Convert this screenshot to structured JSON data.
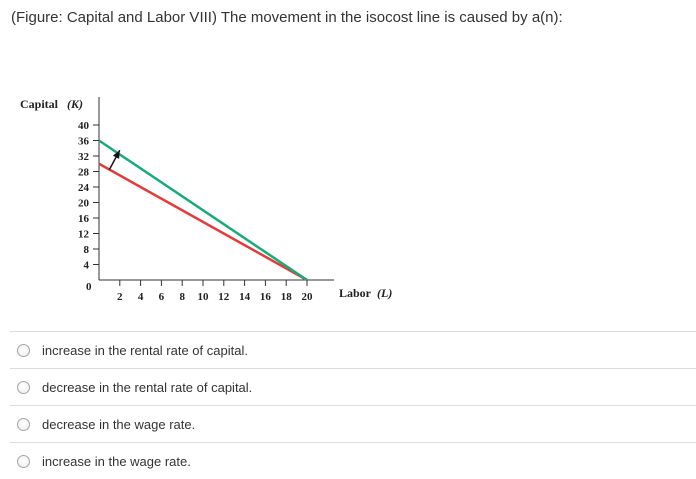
{
  "question": "(Figure: Capital and Labor VIII) The movement in the isocost line is caused by a(n):",
  "figure": {
    "ylabel_text": "Capital",
    "ylabel_symbol": "(K)",
    "xlabel_text": "Labor",
    "xlabel_symbol": "(L)",
    "origin_label": "0",
    "y_ticks": [
      "4",
      "8",
      "12",
      "16",
      "20",
      "24",
      "28",
      "32",
      "36",
      "40"
    ],
    "x_ticks": [
      "2",
      "4",
      "6",
      "8",
      "10",
      "12",
      "14",
      "16",
      "18",
      "20"
    ],
    "colors": {
      "line_original": "#e03c3c",
      "line_new": "#1aaa7a",
      "axis": "#333333",
      "arrow": "#111111"
    }
  },
  "chart_data": {
    "type": "line",
    "xlabel": "Labor (L)",
    "ylabel": "Capital (K)",
    "xlim": [
      0,
      20
    ],
    "ylim": [
      0,
      40
    ],
    "series": [
      {
        "x": [
          0,
          20
        ],
        "y": [
          30,
          0
        ]
      },
      {
        "x": [
          0,
          20
        ],
        "y": [
          36,
          0
        ]
      }
    ],
    "annotations": [
      {
        "type": "arrow",
        "from": [
          1,
          28.5
        ],
        "to": [
          2,
          33.5
        ]
      }
    ]
  },
  "options": [
    {
      "label": "increase in the rental rate of capital."
    },
    {
      "label": "decrease in the rental rate of capital."
    },
    {
      "label": "decrease in the wage rate."
    },
    {
      "label": "increase in the wage rate."
    }
  ]
}
